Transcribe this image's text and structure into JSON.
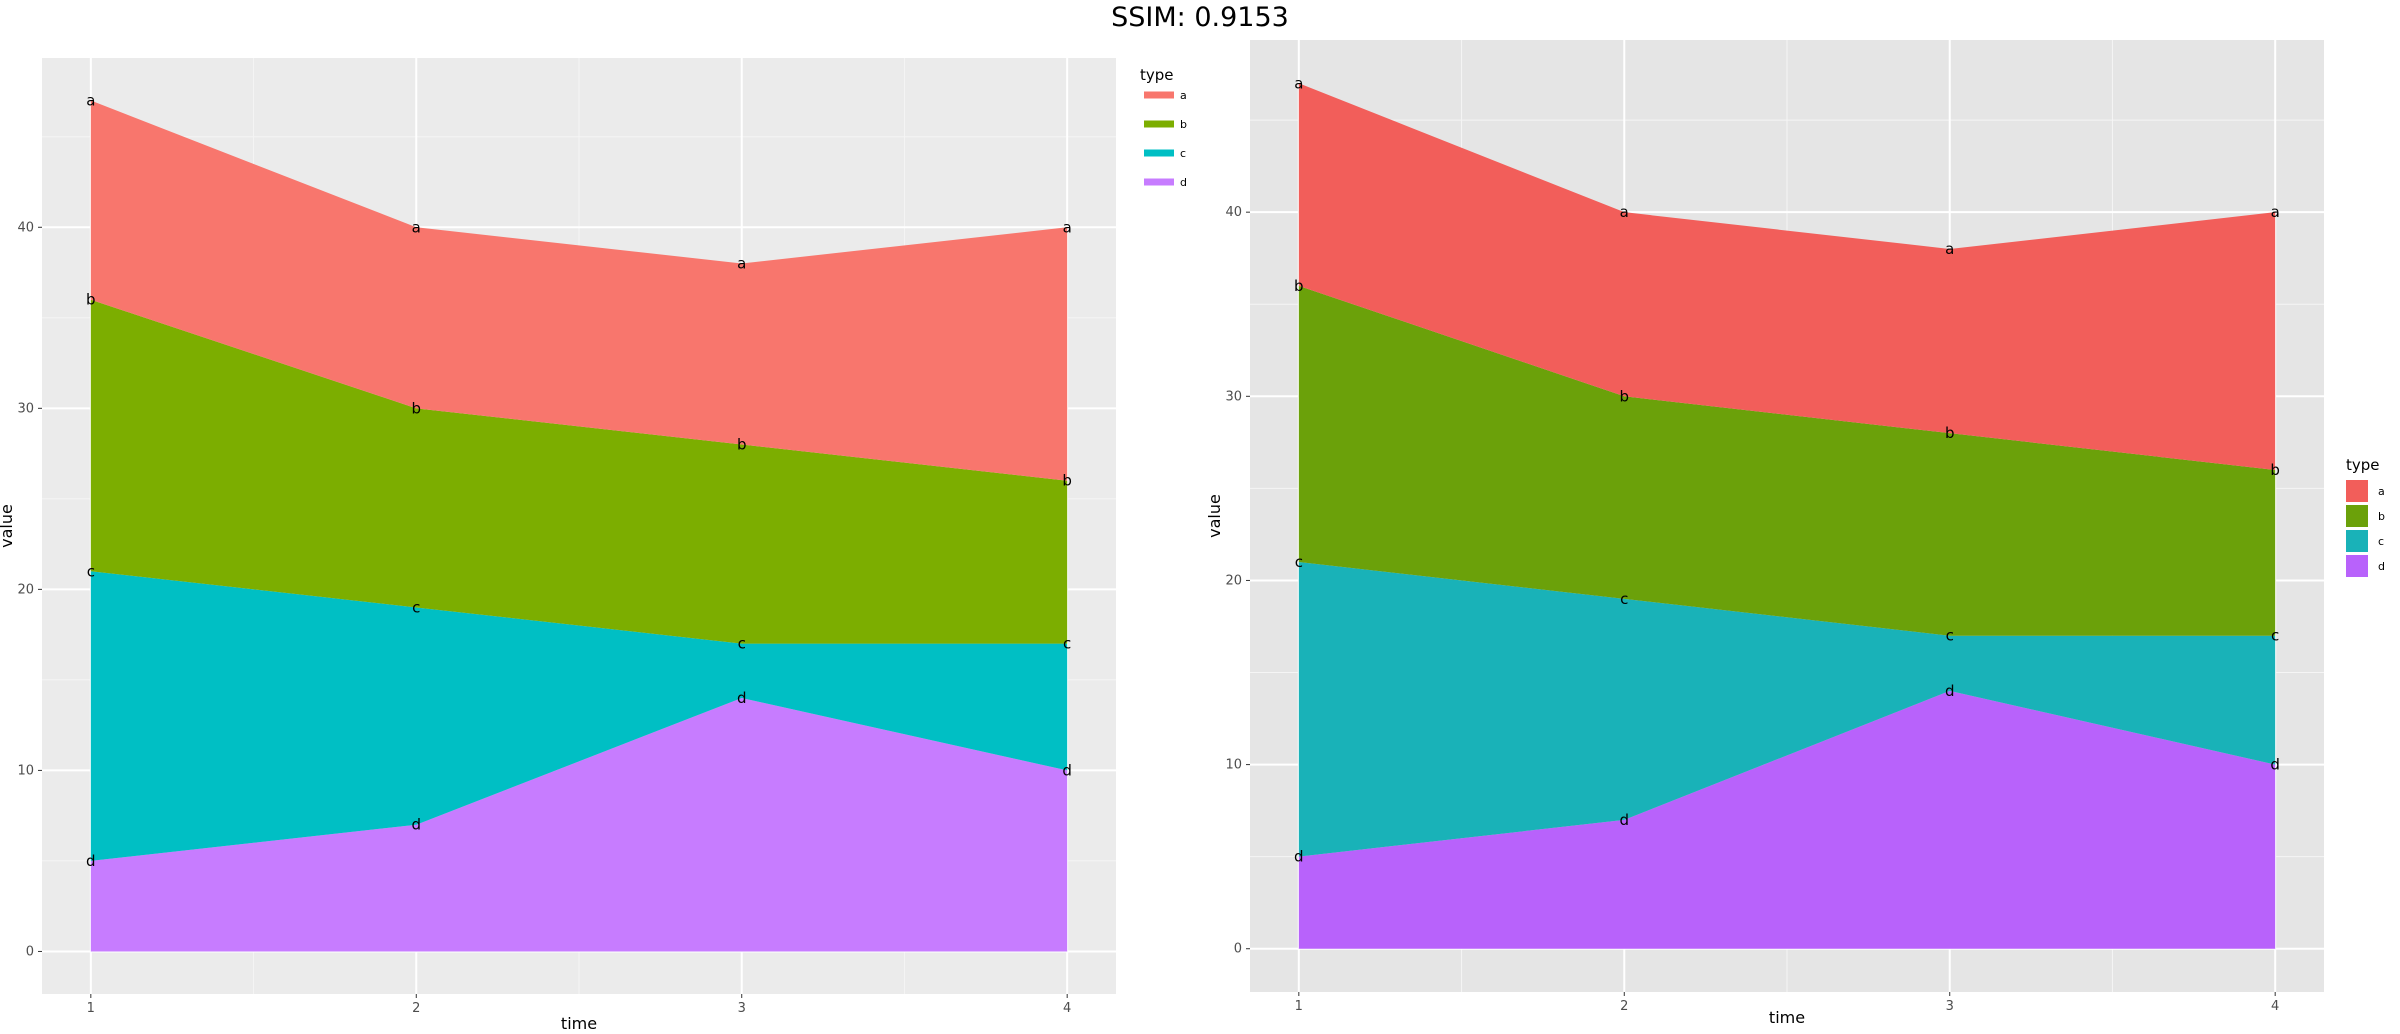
{
  "figure_title": "SSIM: 0.9153",
  "chart_data": [
    {
      "type": "area",
      "stacked": true,
      "x": [
        1,
        2,
        3,
        4
      ],
      "x_ticks": [
        "1",
        "2",
        "3",
        "4"
      ],
      "y_ticks": [
        "0",
        "10",
        "20",
        "30",
        "40"
      ],
      "xlabel": "time",
      "ylabel": "value",
      "xlim": [
        0.85,
        4.15
      ],
      "ylim": [
        -2.35,
        49.35
      ],
      "grid": true,
      "legend": {
        "title": "type",
        "position": "right-top",
        "key_style": "line"
      },
      "series": [
        {
          "name": "a",
          "values": [
            11,
            10,
            10,
            14
          ],
          "color": "#F8766D",
          "point_labels": [
            "a",
            "a",
            "a",
            "a"
          ]
        },
        {
          "name": "b",
          "values": [
            15,
            11,
            11,
            9
          ],
          "color": "#7CAE00",
          "point_labels": [
            "b",
            "b",
            "b",
            "b"
          ]
        },
        {
          "name": "c",
          "values": [
            16,
            12,
            3,
            7
          ],
          "color": "#00BFC4",
          "point_labels": [
            "c",
            "c",
            "c",
            "c"
          ]
        },
        {
          "name": "d",
          "values": [
            5,
            7,
            14,
            10
          ],
          "color": "#C77CFF",
          "point_labels": [
            "d",
            "d",
            "d",
            "d"
          ]
        }
      ]
    },
    {
      "type": "area",
      "stacked": true,
      "x": [
        1,
        2,
        3,
        4
      ],
      "x_ticks": [
        "1",
        "2",
        "3",
        "4"
      ],
      "y_ticks": [
        "0",
        "10",
        "20",
        "30",
        "40"
      ],
      "xlabel": "time",
      "ylabel": "value",
      "xlim": [
        0.85,
        4.15
      ],
      "ylim": [
        -2.35,
        49.35
      ],
      "grid": true,
      "legend": {
        "title": "type",
        "position": "right-center",
        "key_style": "box"
      },
      "series": [
        {
          "name": "a",
          "values": [
            11,
            10,
            10,
            14
          ],
          "color": "#F25E5A",
          "point_labels": [
            "a",
            "a",
            "a",
            "a"
          ]
        },
        {
          "name": "b",
          "values": [
            15,
            11,
            11,
            9
          ],
          "color": "#6BA10A",
          "point_labels": [
            "b",
            "b",
            "b",
            "b"
          ]
        },
        {
          "name": "c",
          "values": [
            16,
            12,
            3,
            7
          ],
          "color": "#19B2B8",
          "point_labels": [
            "c",
            "c",
            "c",
            "c"
          ]
        },
        {
          "name": "d",
          "values": [
            5,
            7,
            14,
            10
          ],
          "color": "#B862FB",
          "point_labels": [
            "d",
            "d",
            "d",
            "d"
          ]
        }
      ]
    }
  ]
}
